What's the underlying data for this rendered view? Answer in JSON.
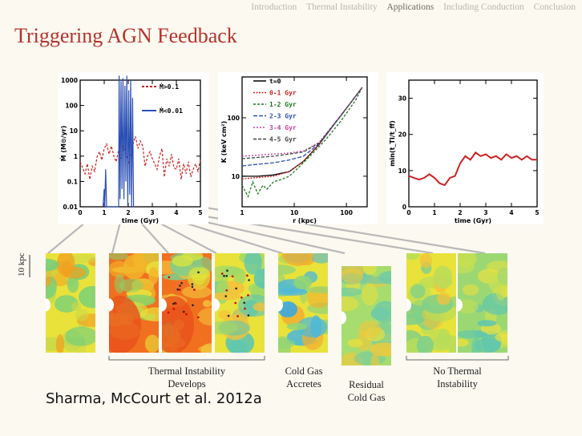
{
  "nav": {
    "items": [
      "Introduction",
      "Thermal Instability",
      "Applications",
      "Including Conduction",
      "Conclusion"
    ],
    "active_index": 2
  },
  "title": "Triggering AGN Feedback",
  "credit": "Sharma, McCourt et al. 2012a",
  "scale_label": "10 kpc",
  "captions": {
    "ti_develops": [
      "Thermal Instability",
      "Develops"
    ],
    "cold_gas_accretes": [
      "Cold Gas",
      "Accretes"
    ],
    "residual_cold_gas": [
      "Residual",
      "Cold Gas"
    ],
    "no_ti": [
      "No Thermal",
      "Instability"
    ]
  },
  "colors": {
    "title": "#b5312a",
    "red_series": "#cc2222",
    "blue_series": "#2a4fb5",
    "background": "#fbf9f0"
  },
  "chart_data": [
    {
      "type": "line",
      "id": "accretion",
      "xlabel": "time (Gyr)",
      "ylabel": "Ṁ (M⊙/yr)",
      "xlim": [
        0,
        5
      ],
      "ylim": [
        0.01,
        1000
      ],
      "ylog": true,
      "xticks": [
        "0",
        "1",
        "2",
        "3",
        "4",
        "5"
      ],
      "yticks": [
        "0.01",
        "0.1",
        "1",
        "10",
        "100",
        "1000"
      ],
      "series": [
        {
          "name": "Ṁ>0.1",
          "color": "#cc2222",
          "dash": true,
          "x": [
            0.0,
            0.1,
            0.2,
            0.3,
            0.4,
            0.5,
            0.6,
            0.7,
            0.8,
            0.9,
            1.0,
            1.1,
            1.2,
            1.3,
            1.4,
            1.5,
            1.6,
            1.7,
            1.8,
            1.9,
            2.0,
            2.1,
            2.2,
            2.3,
            2.4,
            2.5,
            2.6,
            2.7,
            2.8,
            2.9,
            3.0,
            3.1,
            3.2,
            3.3,
            3.4,
            3.5,
            3.6,
            3.7,
            3.8,
            3.9,
            4.0,
            4.1,
            4.2,
            4.3,
            4.4,
            4.5,
            4.6,
            4.7,
            4.8,
            4.9,
            5.0
          ],
          "y": [
            0.6,
            0.35,
            0.2,
            0.5,
            0.12,
            0.4,
            0.25,
            0.9,
            1.5,
            0.7,
            2.0,
            3.0,
            1.2,
            2.5,
            1.0,
            0.6,
            1.8,
            0.8,
            3.0,
            1.5,
            0.5,
            1.0,
            3.0,
            6.0,
            2.0,
            4.0,
            2.5,
            0.4,
            1.0,
            1.5,
            0.8,
            0.5,
            0.3,
            1.0,
            2.0,
            0.15,
            0.8,
            0.4,
            1.2,
            0.35,
            0.3,
            0.8,
            0.12,
            0.5,
            0.2,
            0.6,
            0.15,
            0.3,
            0.5,
            0.25,
            0.7
          ]
        },
        {
          "name": "Ṁ<0.01",
          "color": "#2a4fb5",
          "dash": false,
          "x": [
            0.95,
            1.0,
            1.02,
            1.06,
            1.1,
            1.6,
            1.62,
            1.66,
            1.7,
            1.74,
            1.78,
            1.82,
            1.86,
            1.9,
            1.94,
            1.98,
            2.02,
            2.06,
            2.1,
            2.14,
            2.18,
            2.22,
            2.26
          ],
          "y": [
            0.01,
            0.05,
            0.01,
            0.3,
            0.01,
            0.01,
            1500,
            0.02,
            900,
            0.05,
            1200,
            0.02,
            600,
            0.1,
            1500,
            0.01,
            400,
            0.03,
            1000,
            0.01,
            200,
            0.01,
            0.01
          ]
        }
      ],
      "legend": [
        "Ṁ>0.1",
        "Ṁ<0.01"
      ],
      "legend_position": "top-right"
    },
    {
      "type": "line",
      "id": "entropy",
      "xlabel": "r (kpc)",
      "ylabel": "K (keV cm²)",
      "xlog": true,
      "ylog": true,
      "xlim": [
        1,
        250
      ],
      "ylim": [
        3,
        500
      ],
      "xticks": [
        "1",
        "10",
        "100"
      ],
      "yticks": [
        "10",
        "100"
      ],
      "series": [
        {
          "name": "t=0",
          "color": "#000000",
          "x": [
            1,
            2,
            4,
            8,
            15,
            30,
            60,
            120,
            200
          ],
          "y": [
            10,
            10,
            10.5,
            12,
            18,
            35,
            80,
            180,
            330
          ]
        },
        {
          "name": "0-1 Gyr",
          "color": "#cc2222",
          "x": [
            1,
            2,
            4,
            8,
            15,
            30,
            60,
            120,
            200
          ],
          "y": [
            9,
            9.5,
            10,
            12,
            18,
            35,
            80,
            180,
            330
          ]
        },
        {
          "name": "1-2 Gyr",
          "color": "#1a7a1a",
          "x": [
            1,
            1.3,
            1.6,
            2,
            2.5,
            3,
            4,
            6,
            8,
            12,
            20,
            40,
            80,
            150,
            200
          ],
          "y": [
            7,
            4.5,
            8,
            5,
            7,
            6,
            8,
            9,
            10,
            14,
            22,
            42,
            90,
            200,
            330
          ]
        },
        {
          "name": "2-3 Gyr",
          "color": "#2a4fb5",
          "x": [
            1,
            2,
            4,
            8,
            15,
            30,
            60,
            120,
            200
          ],
          "y": [
            15,
            16,
            17,
            19,
            22,
            36,
            80,
            180,
            330
          ]
        },
        {
          "name": "3-4 Gyr",
          "color": "#c040a0",
          "x": [
            1,
            2,
            4,
            8,
            15,
            30,
            60,
            120,
            200
          ],
          "y": [
            22,
            23,
            24,
            25,
            27,
            38,
            82,
            180,
            330
          ]
        },
        {
          "name": "4-5 Gyr",
          "color": "#444444",
          "x": [
            1,
            2,
            4,
            8,
            15,
            30,
            60,
            120,
            200
          ],
          "y": [
            20,
            21,
            22,
            24,
            26,
            37,
            81,
            180,
            330
          ]
        }
      ],
      "legend": [
        "t=0",
        "0-1 Gyr",
        "1-2 Gyr",
        "2-3 Gyr",
        "3-4 Gyr",
        "4-5 Gyr"
      ],
      "legend_position": "top-left"
    },
    {
      "type": "line",
      "id": "tcool_tff",
      "xlabel": "time (Gyr)",
      "ylabel": "min(t_TI/t_ff)",
      "xlim": [
        0,
        5
      ],
      "ylim": [
        0,
        35
      ],
      "xticks": [
        "0",
        "1",
        "2",
        "3",
        "4",
        "5"
      ],
      "yticks": [
        "0",
        "10",
        "20",
        "30"
      ],
      "series": [
        {
          "name": "",
          "color": "#cc2222",
          "x": [
            0,
            0.2,
            0.4,
            0.6,
            0.8,
            1.0,
            1.2,
            1.4,
            1.6,
            1.8,
            2.0,
            2.2,
            2.4,
            2.6,
            2.8,
            3.0,
            3.2,
            3.4,
            3.6,
            3.8,
            4.0,
            4.2,
            4.4,
            4.6,
            4.8,
            5.0
          ],
          "y": [
            8.5,
            8,
            7.5,
            8,
            9,
            8,
            6.5,
            6,
            8,
            8.5,
            12,
            14,
            13,
            15,
            14,
            14.5,
            13.5,
            14,
            13,
            14.5,
            13.5,
            14,
            13,
            14,
            13,
            13
          ]
        }
      ]
    }
  ],
  "sim_panels": [
    {
      "id": "p1",
      "style": "warm-early"
    },
    {
      "id": "p2",
      "style": "hot"
    },
    {
      "id": "p3",
      "style": "hot-clumps"
    },
    {
      "id": "p4",
      "style": "clumps-top"
    },
    {
      "id": "p5",
      "style": "accretes"
    },
    {
      "id": "p6",
      "style": "residual"
    },
    {
      "id": "p7",
      "style": "quiet"
    },
    {
      "id": "p8",
      "style": "quiet-blue"
    }
  ]
}
